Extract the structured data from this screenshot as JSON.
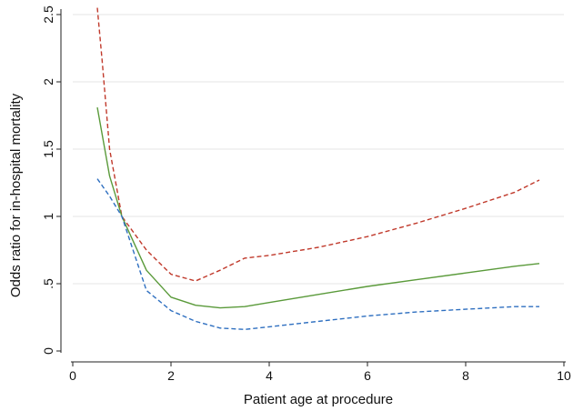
{
  "chart_data": {
    "type": "line",
    "title": "",
    "xlabel": "Patient age at procedure",
    "ylabel": "Odds ratio for in-hospital mortality",
    "xlim": [
      0,
      10
    ],
    "ylim": [
      0,
      2.5
    ],
    "x_ticks": [
      0,
      2,
      4,
      6,
      8,
      10
    ],
    "x_tick_labels": [
      "0",
      "2",
      "4",
      "6",
      "8",
      "10"
    ],
    "y_ticks": [
      0,
      0.5,
      1,
      1.5,
      2,
      2.5
    ],
    "y_tick_labels": [
      "0",
      ".5",
      "1",
      "1.5",
      "2",
      "2.5"
    ],
    "grid": "horizontal",
    "legend": "none",
    "series": [
      {
        "color": "#c0392b",
        "style": "dashed",
        "x": [
          0.5,
          0.6,
          0.75,
          1.0,
          1.5,
          2.0,
          2.5,
          3.0,
          3.5,
          4.0,
          5.0,
          6.0,
          7.0,
          8.0,
          9.0,
          9.5
        ],
        "y": [
          2.55,
          2.15,
          1.5,
          1.0,
          0.75,
          0.57,
          0.52,
          0.6,
          0.69,
          0.71,
          0.77,
          0.85,
          0.95,
          1.06,
          1.18,
          1.27
        ]
      },
      {
        "color": "#5a9a3a",
        "style": "solid",
        "x": [
          0.5,
          0.75,
          1.0,
          1.5,
          2.0,
          2.5,
          3.0,
          3.5,
          4.0,
          5.0,
          6.0,
          7.0,
          8.0,
          9.0,
          9.5
        ],
        "y": [
          1.81,
          1.3,
          1.0,
          0.6,
          0.4,
          0.34,
          0.32,
          0.33,
          0.36,
          0.42,
          0.48,
          0.53,
          0.58,
          0.63,
          0.65
        ]
      },
      {
        "color": "#2e6fc0",
        "style": "dashed",
        "x": [
          0.5,
          0.75,
          1.0,
          1.5,
          2.0,
          2.5,
          3.0,
          3.5,
          4.0,
          5.0,
          6.0,
          7.0,
          8.0,
          9.0,
          9.5
        ],
        "y": [
          1.28,
          1.15,
          1.0,
          0.45,
          0.3,
          0.22,
          0.17,
          0.16,
          0.18,
          0.22,
          0.26,
          0.29,
          0.31,
          0.33,
          0.33
        ]
      }
    ]
  }
}
